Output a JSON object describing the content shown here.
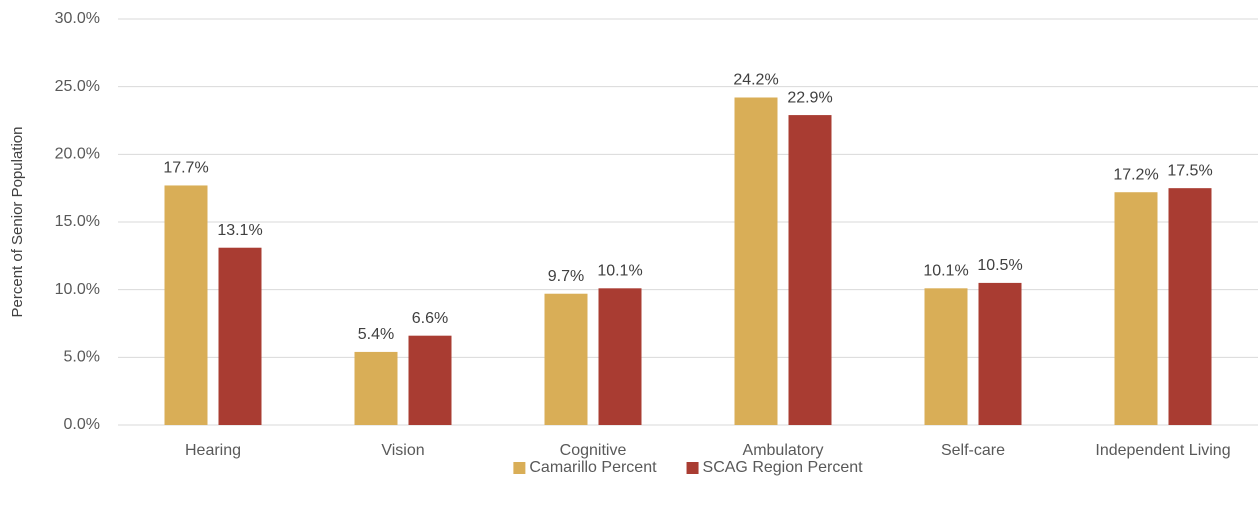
{
  "chart_data": {
    "type": "bar",
    "y_label": "Percent of Senior Population",
    "categories": [
      "Hearing",
      "Vision",
      "Cognitive",
      "Ambulatory",
      "Self-care",
      "Independent Living"
    ],
    "series": [
      {
        "name": "Camarillo Percent",
        "color": "#d9ae57",
        "values": [
          17.7,
          5.4,
          9.7,
          24.2,
          10.1,
          17.2
        ],
        "value_labels": [
          "17.7%",
          "5.4%",
          "9.7%",
          "24.2%",
          "10.1%",
          "17.2%"
        ]
      },
      {
        "name": "SCAG Region Percent",
        "color": "#a93c32",
        "values": [
          13.1,
          6.6,
          10.1,
          22.9,
          10.5,
          17.5
        ],
        "value_labels": [
          "13.1%",
          "6.6%",
          "10.1%",
          "22.9%",
          "10.5%",
          "17.5%"
        ]
      }
    ],
    "ylim": [
      0,
      30
    ],
    "yticks": [
      {
        "value": 0,
        "label": "0.0%"
      },
      {
        "value": 5,
        "label": "5.0%"
      },
      {
        "value": 10,
        "label": "10.0%"
      },
      {
        "value": 15,
        "label": "15.0%"
      },
      {
        "value": 20,
        "label": "20.0%"
      },
      {
        "value": 25,
        "label": "25.0%"
      },
      {
        "value": 30,
        "label": "30.0%"
      }
    ],
    "grid": true,
    "legend": "bottom"
  }
}
